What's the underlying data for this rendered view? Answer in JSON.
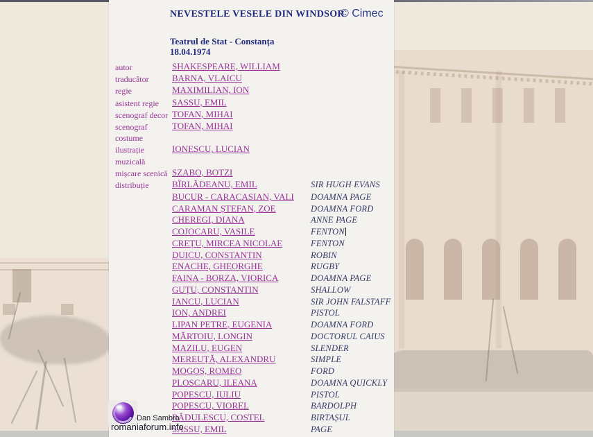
{
  "page": {
    "title": "NEVESTELE VESELE DIN WINDSOR",
    "copyright": "© Cimec",
    "theater": "Teatrul de Stat - Constanța",
    "date": "18.04.1974"
  },
  "crew": [
    {
      "label": "autor",
      "name": "SHAKESPEARE, WILLIAM"
    },
    {
      "label": "traducător",
      "name": "BARNA, VLAICU"
    },
    {
      "label": "regie",
      "name": "MAXIMILIAN, ION"
    },
    {
      "label": "asistent regie",
      "name": "SASSU, EMIL"
    },
    {
      "label": "scenograf decor",
      "name": "TOFAN, MIHAI"
    },
    {
      "label": "scenograf costume",
      "name": "TOFAN, MIHAI"
    },
    {
      "label": "ilustrație muzicală",
      "name": "IONESCU, LUCIAN"
    },
    {
      "label": "mișcare scenică",
      "name": "SZABO, BOTZI"
    }
  ],
  "cast_section_label": "distribuție",
  "cast": [
    {
      "name": "BÎRLĂDEANU, EMIL",
      "role": "SIR HUGH EVANS"
    },
    {
      "name": "BUCUR - CARACASIAN, VALI",
      "role": "DOAMNA PAGE"
    },
    {
      "name": "CARAMAN ȘTEFAN, ZOE",
      "role": "DOAMNA FORD"
    },
    {
      "name": "CHEREGI, DIANA",
      "role": "ANNE PAGE"
    },
    {
      "name": "COJOCARU, VASILE",
      "role": "FENTON",
      "caret": true
    },
    {
      "name": "CREȚU, MIRCEA NICOLAE",
      "role": "FENTON"
    },
    {
      "name": "DUICU, CONSTANTIN",
      "role": "ROBIN"
    },
    {
      "name": "ENACHE, GHEORGHE",
      "role": "RUGBY"
    },
    {
      "name": "FAINA - BORZA, VIORICA",
      "role": "DOAMNA PAGE"
    },
    {
      "name": "GUȚU, CONSTANTIN",
      "role": "SHALLOW"
    },
    {
      "name": "IANCU, LUCIAN",
      "role": "SIR JOHN FALSTAFF"
    },
    {
      "name": "ION, ANDREI",
      "role": "PISTOL"
    },
    {
      "name": "LIPAN PETRE, EUGENIA",
      "role": "DOAMNA FORD"
    },
    {
      "name": "MĂRTOIU, LONGIN",
      "role": "DOCTORUL CAIUS"
    },
    {
      "name": "MAZILU, EUGEN",
      "role": "SLENDER"
    },
    {
      "name": "MEREUȚĂ, ALEXANDRU",
      "role": "SIMPLE"
    },
    {
      "name": "MOGOȘ, ROMEO",
      "role": "FORD"
    },
    {
      "name": "PLOSCARU, ILEANA",
      "role": "DOAMNA QUICKLY"
    },
    {
      "name": "POPESCU, IULIU",
      "role": "PISTOL"
    },
    {
      "name": "POPESCU, VIOREL",
      "role": "BARDOLPH"
    },
    {
      "name": "RĂDULESCU, COSTEL",
      "role": "BIRTAȘUL"
    },
    {
      "name": "SASSU, EMIL",
      "role": "PAGE"
    }
  ],
  "watermark": {
    "author": "Dan Sambra",
    "site": "romaniaforum.info",
    "logo": "purple-globe-icon"
  },
  "colors": {
    "link_purple": "#993399",
    "heading_navy": "#222a7d",
    "role_blue": "#363c68",
    "page_beige": "#efe9dd",
    "column_white": "#f3f2ee"
  }
}
